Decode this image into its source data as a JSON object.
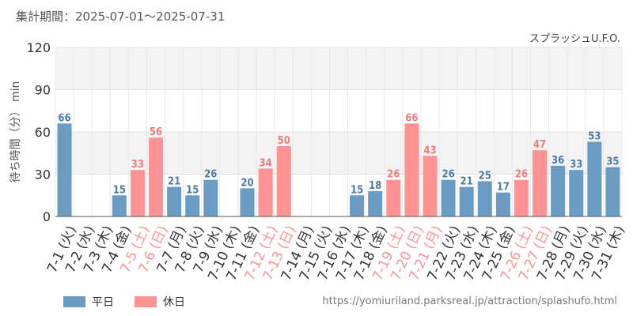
{
  "header": {
    "period": "集計期間：2025-07-01～2025-07-31"
  },
  "footer": {
    "source_url": "https://yomiuriland.parksreal.jp/attraction/splashufo.html"
  },
  "colors": {
    "weekday": "#6a9bc3",
    "holiday": "#ff9292",
    "weekday_label": "#4a7aa6",
    "holiday_label": "#f07a7a",
    "axis_label": "#333333"
  },
  "chart_data": {
    "type": "bar",
    "title": "スプラッシュU.F.O.",
    "ylabel": "待ち時間（分） min",
    "ylim": [
      0,
      120
    ],
    "yticks": [
      0,
      30,
      60,
      90,
      120
    ],
    "grid": true,
    "legend_position": "bottom-left",
    "series": [
      {
        "name": "平日",
        "color": "#6a9bc3"
      },
      {
        "name": "休日",
        "color": "#ff9292"
      }
    ],
    "categories": [
      "7-1 (火)",
      "7-2 (水)",
      "7-3 (木)",
      "7-4 (金)",
      "7-5 (土)",
      "7-6 (日)",
      "7-7 (月)",
      "7-8 (火)",
      "7-9 (水)",
      "7-10 (木)",
      "7-11 (金)",
      "7-12 (土)",
      "7-13 (日)",
      "7-14 (月)",
      "7-15 (火)",
      "7-16 (水)",
      "7-17 (木)",
      "7-18 (金)",
      "7-19 (土)",
      "7-20 (日)",
      "7-21 (月)",
      "7-22 (火)",
      "7-23 (水)",
      "7-24 (木)",
      "7-25 (金)",
      "7-26 (土)",
      "7-27 (日)",
      "7-28 (月)",
      "7-29 (火)",
      "7-30 (水)",
      "7-31 (木)"
    ],
    "values": [
      66,
      null,
      null,
      15,
      33,
      56,
      21,
      15,
      26,
      null,
      20,
      34,
      50,
      null,
      null,
      null,
      15,
      18,
      26,
      66,
      43,
      26,
      21,
      25,
      17,
      26,
      47,
      36,
      33,
      53,
      35
    ],
    "holiday": [
      false,
      false,
      false,
      false,
      true,
      true,
      false,
      false,
      false,
      false,
      false,
      true,
      true,
      false,
      false,
      false,
      false,
      false,
      true,
      true,
      true,
      false,
      false,
      false,
      false,
      true,
      true,
      false,
      false,
      false,
      false
    ]
  }
}
